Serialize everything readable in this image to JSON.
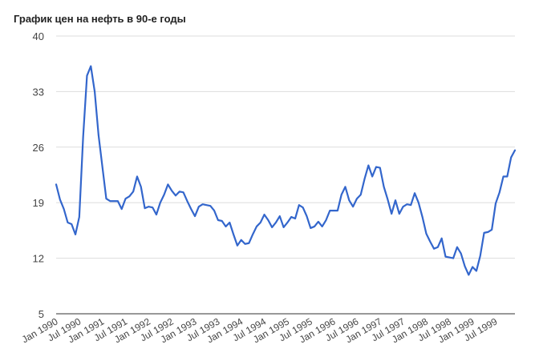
{
  "colors": {
    "series": "#3366cc",
    "grid": "#dddddd",
    "axis": "#333333",
    "text": "#444444"
  },
  "chart_data": {
    "type": "line",
    "title": "График цен на нефть в 90-е годы",
    "xlabel": "",
    "ylabel": "",
    "ylim": [
      5,
      40
    ],
    "yticks": [
      5,
      12,
      19,
      26,
      33,
      40
    ],
    "grid": true,
    "legend": "none",
    "x_start": "1990-01",
    "x_end": "1999-12",
    "xtick_labels": [
      "Jan 1990",
      "Jul 1990",
      "Jan 1991",
      "Jul 1991",
      "Jan 1992",
      "Jul 1992",
      "Jan 1993",
      "Jul 1993",
      "Jan 1994",
      "Jul 1994",
      "Jan 1995",
      "Jul 1995",
      "Jan 1996",
      "Jul 1996",
      "Jan 1997",
      "Jul 1997",
      "Jan 1998",
      "Jul 1998",
      "Jan 1999",
      "Jul 1999"
    ],
    "series": [
      {
        "values": [
          21.3,
          19.4,
          18.2,
          16.5,
          16.3,
          15.0,
          17.2,
          27.3,
          35.0,
          36.2,
          33.0,
          27.5,
          23.5,
          19.5,
          19.2,
          19.2,
          19.2,
          18.2,
          19.5,
          19.8,
          20.4,
          22.3,
          21.0,
          18.3,
          18.5,
          18.4,
          17.5,
          19.0,
          20.0,
          21.3,
          20.5,
          19.9,
          20.4,
          20.3,
          19.2,
          18.2,
          17.3,
          18.5,
          18.8,
          18.7,
          18.6,
          18.0,
          16.8,
          16.7,
          16.0,
          16.5,
          15.0,
          13.6,
          14.3,
          13.8,
          13.9,
          15.0,
          16.0,
          16.5,
          17.5,
          16.8,
          15.9,
          16.5,
          17.3,
          15.9,
          16.5,
          17.2,
          17.0,
          18.7,
          18.4,
          17.3,
          15.8,
          16.0,
          16.6,
          16.0,
          16.8,
          18.0,
          18.0,
          18.0,
          20.0,
          21.0,
          19.3,
          18.5,
          19.5,
          20.0,
          22.0,
          23.7,
          22.3,
          23.5,
          23.4,
          21.0,
          19.4,
          17.6,
          19.3,
          17.6,
          18.5,
          18.8,
          18.7,
          20.2,
          19.0,
          17.2,
          15.1,
          14.1,
          13.2,
          13.4,
          14.5,
          12.2,
          12.1,
          12.0,
          13.4,
          12.6,
          11.0,
          9.9,
          10.9,
          10.4,
          12.3,
          15.2,
          15.3,
          15.6,
          18.9,
          20.3,
          22.3,
          22.3,
          24.7,
          25.6
        ]
      }
    ]
  }
}
